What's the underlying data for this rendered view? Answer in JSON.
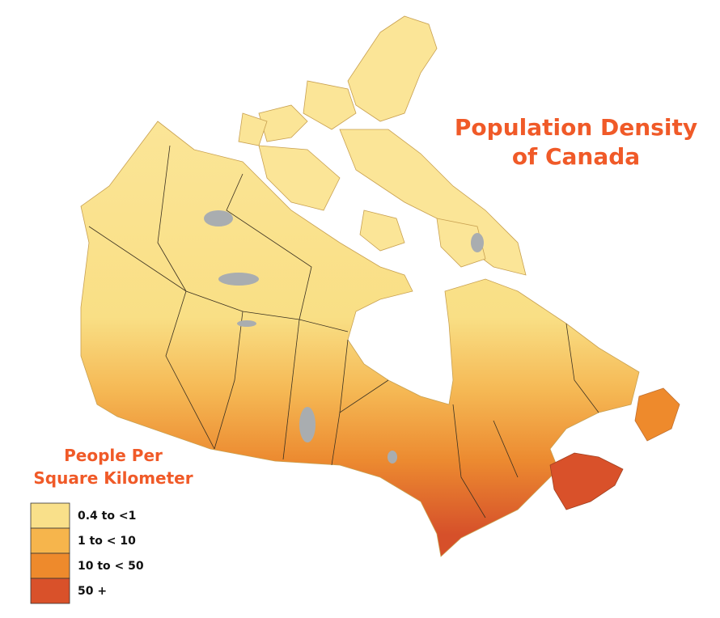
{
  "title_lines": [
    "Population Density",
    "of Canada"
  ],
  "legend": {
    "title_lines": [
      "People Per",
      "Square Kilometer"
    ],
    "items": [
      {
        "label": "0.4 to <1",
        "color": "#f9e08a"
      },
      {
        "label": "1 to < 10",
        "color": "#f6b54c"
      },
      {
        "label": "10 to < 50",
        "color": "#ee8a2c"
      },
      {
        "label": "50 +",
        "color": "#d9512a"
      }
    ]
  }
}
